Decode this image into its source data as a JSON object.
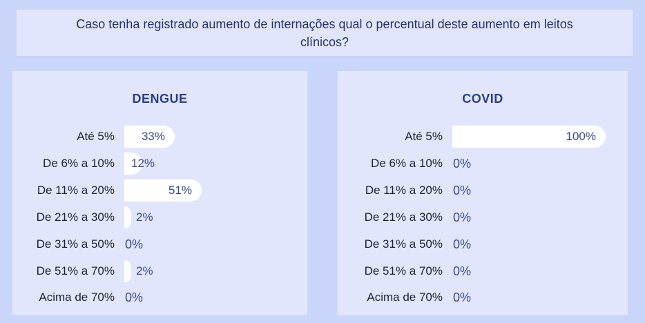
{
  "question": "Caso tenha registrado aumento de internações qual o percentual deste aumento em leitos clínicos?",
  "colors": {
    "background": "#c9d5f9",
    "panel": "#e1e6fc",
    "bar": "#ffffff",
    "title": "#2b3d86",
    "value": "#3a4a8f"
  },
  "chart_data": [
    {
      "type": "bar",
      "orientation": "horizontal",
      "title": "DENGUE",
      "categories": [
        "Até 5%",
        "De 6% a 10%",
        "De 11% a 20%",
        "De 21% a 30%",
        "De 31% a 50%",
        "De 51% a 70%",
        "Acima de 70%"
      ],
      "values": [
        33,
        12,
        51,
        2,
        0,
        2,
        0
      ],
      "labels": [
        "33%",
        "12%",
        "51%",
        "2%",
        "0%",
        "2%",
        "0%"
      ],
      "xlim": [
        0,
        100
      ]
    },
    {
      "type": "bar",
      "orientation": "horizontal",
      "title": "COVID",
      "categories": [
        "Até 5%",
        "De 6% a 10%",
        "De 11% a 20%",
        "De 21% a 30%",
        "De 31% a 50%",
        "De 51% a 70%",
        "Acima de 70%"
      ],
      "values": [
        100,
        0,
        0,
        0,
        0,
        0,
        0
      ],
      "labels": [
        "100%",
        "0%",
        "0%",
        "0%",
        "0%",
        "0%",
        "0%"
      ],
      "xlim": [
        0,
        100
      ]
    }
  ]
}
